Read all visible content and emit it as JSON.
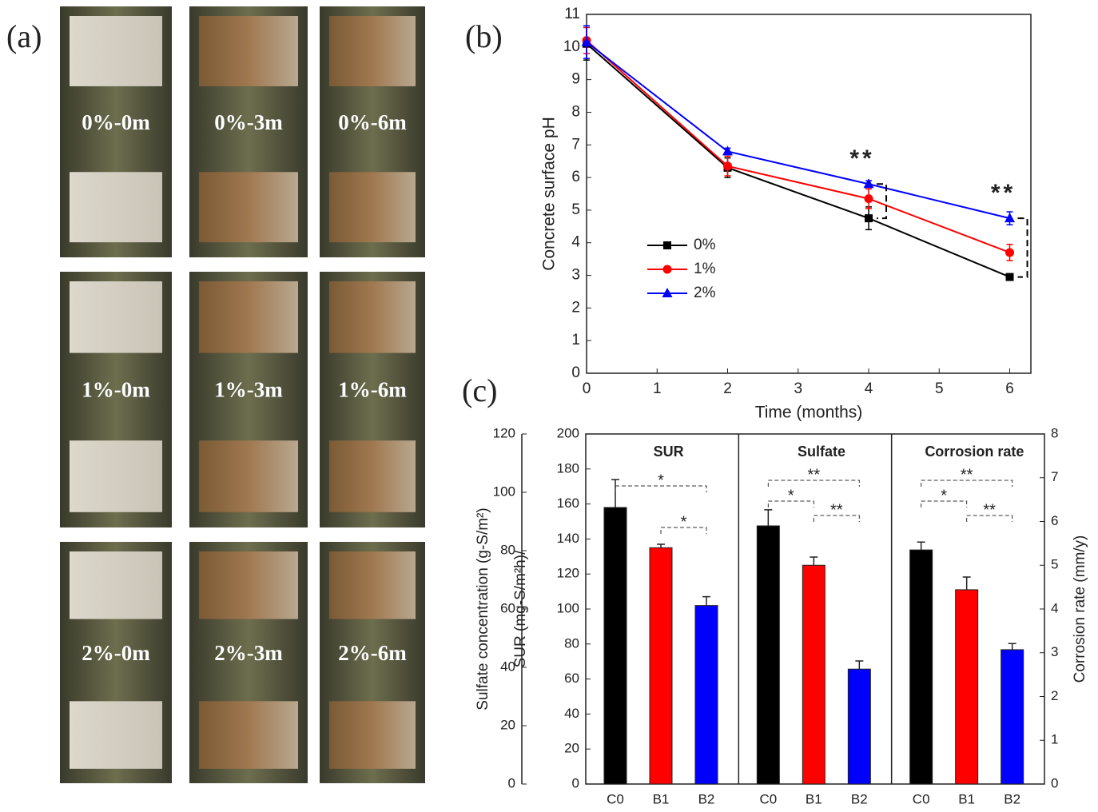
{
  "photo_panel": {
    "label": "(a)",
    "tiles": [
      [
        "0%-0m",
        "0%-3m",
        "0%-6m"
      ],
      [
        "1%-0m",
        "1%-3m",
        "1%-6m"
      ],
      [
        "2%-0m",
        "2%-3m",
        "2%-6m"
      ]
    ]
  },
  "chart_data": [
    {
      "type": "line",
      "panel_label": "(b)",
      "xlabel": "Time (months)",
      "ylabel": "Concrete surface pH",
      "x": [
        0,
        2,
        4,
        6
      ],
      "xlim": [
        0,
        6.3
      ],
      "xticks": [
        0,
        1,
        2,
        3,
        4,
        5,
        6
      ],
      "ylim": [
        0,
        11
      ],
      "yticks": [
        0,
        1,
        2,
        3,
        4,
        5,
        6,
        7,
        8,
        9,
        10,
        11
      ],
      "series": [
        {
          "name": "0%",
          "color": "#000000",
          "marker": "square",
          "values": [
            10.1,
            6.3,
            4.75,
            2.95
          ],
          "errors": [
            0.5,
            0.3,
            0.35,
            0.05
          ]
        },
        {
          "name": "1%",
          "color": "#ff0000",
          "marker": "circle",
          "values": [
            10.2,
            6.35,
            5.35,
            3.7
          ],
          "errors": [
            0.4,
            0.3,
            0.3,
            0.25
          ]
        },
        {
          "name": "2%",
          "color": "#0000ff",
          "marker": "triangle",
          "values": [
            10.15,
            6.8,
            5.8,
            4.75
          ],
          "errors": [
            0.5,
            0.1,
            0.1,
            0.2
          ]
        }
      ],
      "annotations": [
        "**",
        "**"
      ],
      "legend": "lower left"
    },
    {
      "type": "grouped-bar",
      "panel_label": "(c)",
      "categories": [
        "C0",
        "B1",
        "B2"
      ],
      "colors": [
        "#000000",
        "#ff0000",
        "#0000ff"
      ],
      "ylabel": "SUR (mg-S/m²h)/",
      "ylim": [
        0,
        200
      ],
      "yticks": [
        0,
        20,
        40,
        60,
        80,
        100,
        120,
        140,
        160,
        180,
        200
      ],
      "y3label": "Sulfate concentration (g-S/m²)",
      "y3lim": [
        0,
        120
      ],
      "y3ticks": [
        0,
        20,
        40,
        60,
        80,
        100,
        120
      ],
      "y2label": "Corrosion rate (mm/y)",
      "y2lim": [
        0,
        8
      ],
      "y2ticks": [
        0,
        1,
        2,
        3,
        4,
        5,
        6,
        7,
        8
      ],
      "groups": [
        {
          "name": "SUR",
          "axis": "y",
          "values": [
            158,
            135,
            102
          ],
          "errors": [
            16,
            2,
            5
          ],
          "significance": [
            "*",
            "*"
          ]
        },
        {
          "name": "Sulfate",
          "axis": "y3",
          "values": [
            88.5,
            75,
            39.4
          ],
          "errors": [
            5.5,
            2.8,
            2.8
          ],
          "significance": [
            "**",
            "*",
            "**"
          ]
        },
        {
          "name": "Corrosion rate",
          "axis": "y2",
          "values": [
            5.35,
            4.44,
            3.07
          ],
          "errors": [
            0.18,
            0.29,
            0.14
          ],
          "significance": [
            "**",
            "*",
            "**"
          ]
        }
      ]
    }
  ]
}
